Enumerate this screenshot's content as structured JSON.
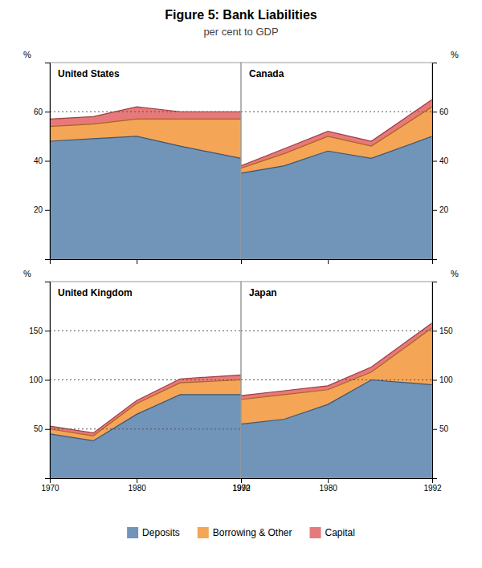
{
  "chart_data": {
    "type": "area",
    "title": "Figure 5: Bank Liabilities",
    "subtitle": "per cent to GDP",
    "legend": "bottom",
    "panels": [
      {
        "type": "area",
        "title": "United States",
        "ylabel": "%",
        "x": [
          1970,
          1975,
          1980,
          1985,
          1992
        ],
        "series": [
          {
            "name": "Deposits",
            "values": [
              48,
              49,
              50,
              46,
              41
            ]
          },
          {
            "name": "Borrowing & Other",
            "values": [
              54,
              55,
              57,
              57,
              57
            ]
          },
          {
            "name": "Capital",
            "values": [
              57,
              58,
              62,
              60,
              60
            ]
          }
        ],
        "xlim": [
          1970,
          1992
        ],
        "xticks": [
          1970,
          1980,
          1992
        ],
        "ylim": [
          0,
          80
        ],
        "yticks": [
          20,
          40,
          60
        ],
        "reference_lines": [
          60
        ],
        "tick_labels": "y"
      },
      {
        "type": "area",
        "title": "Canada",
        "ylabel": "%",
        "x": [
          1970,
          1975,
          1980,
          1985,
          1992
        ],
        "series": [
          {
            "name": "Deposits",
            "values": [
              35,
              38,
              44,
              41,
              50
            ]
          },
          {
            "name": "Borrowing & Other",
            "values": [
              37,
              43,
              50,
              46,
              62
            ]
          },
          {
            "name": "Capital",
            "values": [
              38,
              45,
              52,
              48,
              65
            ]
          }
        ],
        "xlim": [
          1970,
          1992
        ],
        "xticks": [
          1970,
          1980,
          1992
        ],
        "ylim": [
          0,
          80
        ],
        "yticks": [
          20,
          40,
          60
        ],
        "reference_lines": [
          60
        ],
        "tick_labels": "y"
      },
      {
        "type": "area",
        "title": "United Kingdom",
        "ylabel": "%",
        "x": [
          1970,
          1975,
          1980,
          1985,
          1992
        ],
        "series": [
          {
            "name": "Deposits",
            "values": [
              45,
              38,
              65,
              85,
              85
            ]
          },
          {
            "name": "Borrowing & Other",
            "values": [
              50,
              43,
              76,
              97,
              100
            ]
          },
          {
            "name": "Capital",
            "values": [
              53,
              46,
              79,
              101,
              105
            ]
          }
        ],
        "xlim": [
          1970,
          1992
        ],
        "xticks": [
          1970,
          1980,
          1992
        ],
        "ylim": [
          0,
          200
        ],
        "yticks": [
          50,
          100,
          150
        ],
        "reference_lines": [
          50,
          100,
          150
        ]
      },
      {
        "type": "area",
        "title": "Japan",
        "ylabel": "%",
        "x": [
          1970,
          1975,
          1980,
          1985,
          1992
        ],
        "series": [
          {
            "name": "Deposits",
            "values": [
              55,
              60,
              75,
              100,
              95
            ]
          },
          {
            "name": "Borrowing & Other",
            "values": [
              80,
              85,
              90,
              108,
              153
            ]
          },
          {
            "name": "Capital",
            "values": [
              84,
              89,
              94,
              113,
              158
            ]
          }
        ],
        "xlim": [
          1970,
          1992
        ],
        "xticks": [
          1970,
          1980,
          1992
        ],
        "ylim": [
          0,
          200
        ],
        "yticks": [
          50,
          100,
          150
        ],
        "reference_lines": [
          100,
          150
        ]
      }
    ]
  }
}
